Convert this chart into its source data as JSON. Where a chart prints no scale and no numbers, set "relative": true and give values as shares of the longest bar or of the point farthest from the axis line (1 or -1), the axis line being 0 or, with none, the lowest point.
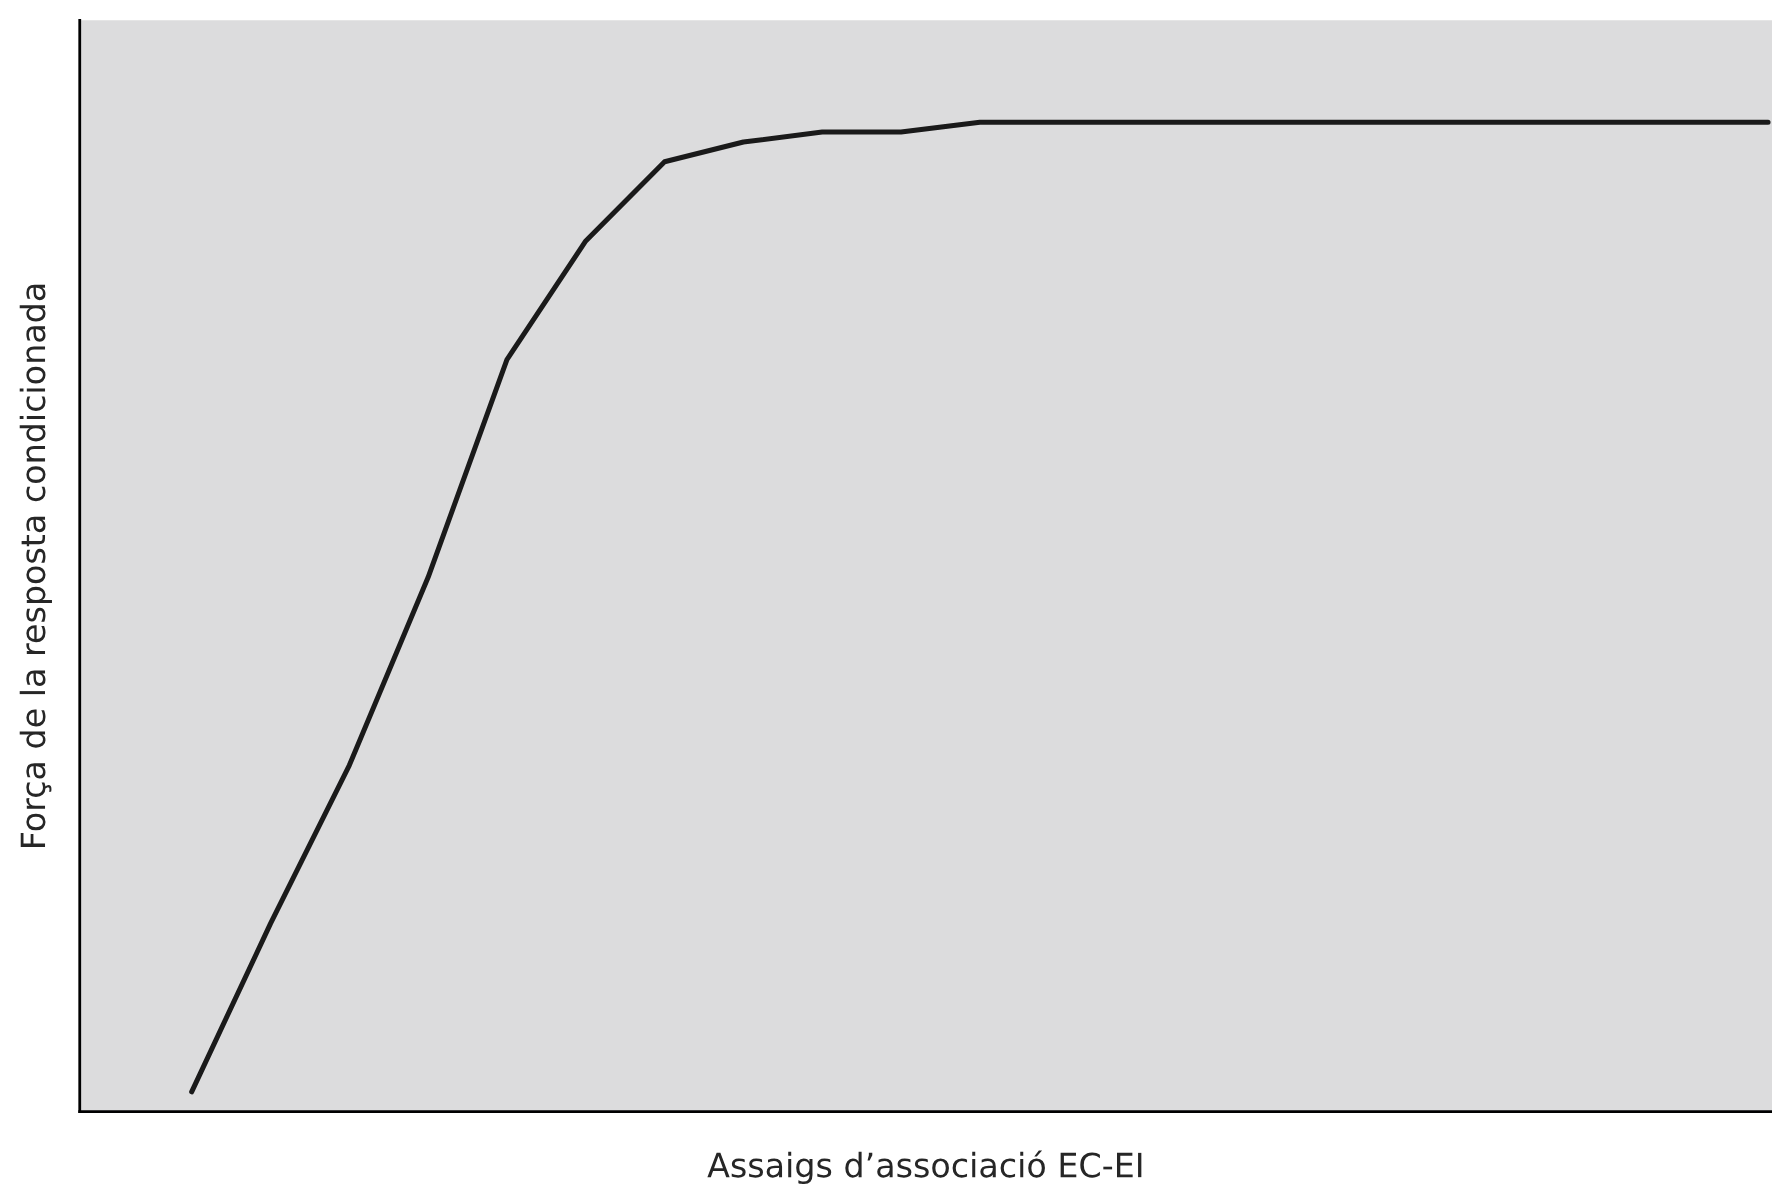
{
  "chart_data": {
    "type": "line",
    "relative": true,
    "xlabel": "Assaigs d’associació EC-EI",
    "ylabel": "Força de la resposta condicionada",
    "categories": [
      null,
      null,
      null,
      null,
      null,
      null,
      null,
      null,
      null,
      null,
      null,
      null,
      null,
      null,
      null,
      null,
      null,
      null,
      null,
      null,
      null
    ],
    "series": [
      {
        "color": "#1a1a1a",
        "values": [
          0.02,
          0.19,
          0.35,
          0.54,
          0.76,
          0.88,
          0.96,
          0.98,
          0.99,
          0.99,
          1.0,
          1.0,
          1.0,
          1.0,
          1.0,
          1.0,
          1.0,
          1.0,
          1.0,
          1.0,
          1.0
        ]
      }
    ],
    "marker": "none",
    "line_style": "solid",
    "tick_labels": false
  }
}
